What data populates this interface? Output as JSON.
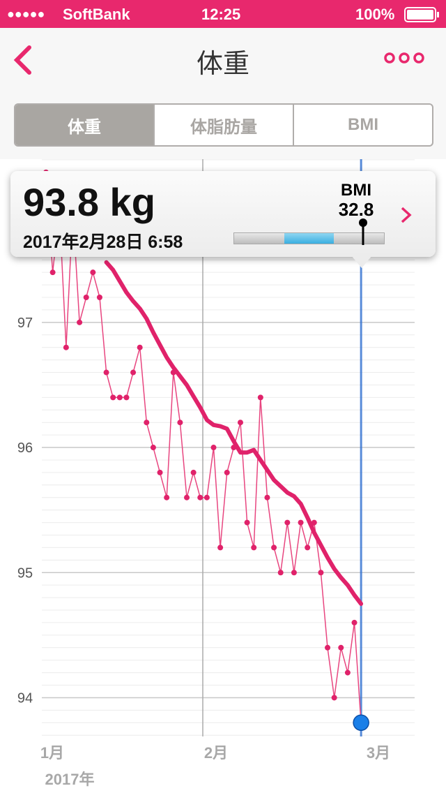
{
  "status_bar": {
    "carrier": "SoftBank",
    "time": "12:25",
    "battery": "100%"
  },
  "nav": {
    "title": "体重"
  },
  "tabs": [
    "体重",
    "体脂肪量",
    "BMI"
  ],
  "popup": {
    "weight": "93.8 kg",
    "date": "2017年2月28日 6:58",
    "bmi_label": "BMI",
    "bmi": "32.8"
  },
  "chart_data": {
    "type": "line",
    "x_labels": [
      "1月",
      "2月",
      "3月"
    ],
    "x_year": "2017年",
    "ylim": [
      93.69,
      98.305
    ],
    "yticks": [
      94,
      95,
      96,
      97
    ],
    "minor_yticks": [
      93.7,
      93.8,
      93.9,
      94.1,
      94.2,
      94.3,
      94.4,
      94.5,
      94.6,
      94.7,
      94.8,
      94.9,
      95.1,
      95.2,
      95.3,
      95.4,
      95.5,
      95.6,
      95.7,
      95.8,
      95.9,
      96.1,
      96.2,
      96.3,
      96.4,
      96.5,
      96.6,
      96.7,
      96.8,
      96.9,
      97.1,
      97.2,
      97.3,
      97.4,
      97.5,
      97.6,
      97.7,
      97.8,
      97.9,
      98.1,
      98.2,
      98.3
    ],
    "grid": true,
    "series": [
      {
        "color": "#e8457f",
        "values": [
          98.2,
          97.4,
          97.9,
          96.8,
          97.9,
          97.0,
          97.2,
          97.4,
          97.2,
          96.6,
          96.4,
          96.4,
          96.4,
          96.6,
          96.8,
          96.2,
          96.0,
          95.8,
          95.6,
          96.6,
          96.2,
          95.6,
          95.8,
          95.6,
          95.6,
          96.0,
          95.2,
          95.8,
          96.0,
          96.2,
          95.4,
          95.2,
          96.4,
          95.6,
          95.2,
          95.0,
          95.4,
          95.0,
          95.4,
          95.2,
          95.4,
          95.0,
          94.4,
          94.0,
          94.4,
          94.2,
          94.6,
          93.8
        ]
      },
      {
        "color": "#e0226a",
        "values": [
          null,
          null,
          null,
          null,
          null,
          null,
          null,
          null,
          null,
          97.48,
          97.42,
          97.33,
          97.24,
          97.17,
          97.11,
          97.03,
          96.92,
          96.82,
          96.72,
          96.64,
          96.57,
          96.5,
          96.41,
          96.32,
          96.22,
          96.18,
          96.17,
          96.15,
          96.05,
          95.96,
          95.96,
          95.98,
          95.9,
          95.82,
          95.74,
          95.69,
          95.64,
          95.61,
          95.55,
          95.44,
          95.32,
          95.22,
          95.12,
          95.03,
          94.96,
          94.9,
          94.82,
          94.75
        ]
      }
    ]
  }
}
